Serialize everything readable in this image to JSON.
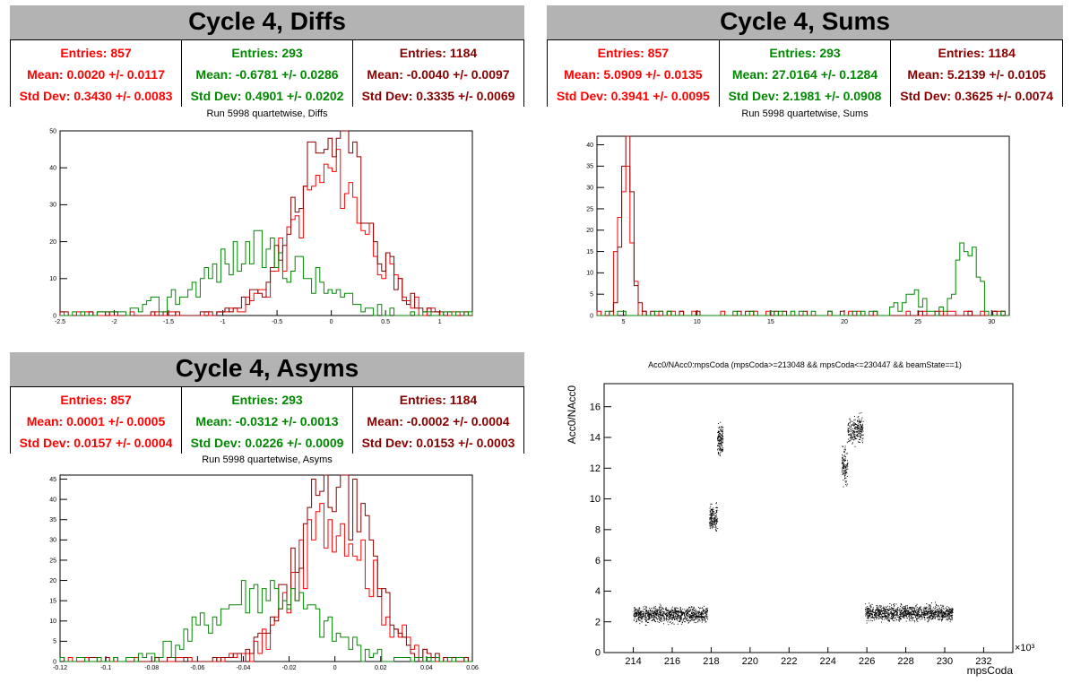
{
  "colors": {
    "entries1": "#ff0000",
    "entries2": "#008800",
    "entries3": "#880000",
    "title_bg": "#b3b3b3"
  },
  "panels": {
    "diffs": {
      "title": "Cycle 4, Diffs",
      "stats": [
        {
          "entries": "Entries: 857",
          "mean": "Mean: 0.0020 +/- 0.0117",
          "std": "Std Dev: 0.3430 +/- 0.0083"
        },
        {
          "entries": "Entries: 293",
          "mean": "Mean: -0.6781 +/- 0.0286",
          "std": "Std Dev: 0.4901 +/- 0.0202"
        },
        {
          "entries": "Entries: 1184",
          "mean": "Mean: -0.0040 +/- 0.0097",
          "std": "Std Dev: 0.3335 +/- 0.0069"
        }
      ],
      "subtitle": "Run 5998 quartetwise, Diffs"
    },
    "sums": {
      "title": "Cycle 4, Sums",
      "stats": [
        {
          "entries": "Entries: 857",
          "mean": "Mean: 5.0909 +/- 0.0135",
          "std": "Std Dev: 0.3941 +/- 0.0095"
        },
        {
          "entries": "Entries: 293",
          "mean": "Mean: 27.0164 +/- 0.1284",
          "std": "Std Dev: 2.1981 +/- 0.0908"
        },
        {
          "entries": "Entries: 1184",
          "mean": "Mean: 5.2139 +/- 0.0105",
          "std": "Std Dev: 0.3625 +/- 0.0074"
        }
      ],
      "subtitle": "Run 5998 quartetwise, Sums"
    },
    "asyms": {
      "title": "Cycle 4, Asyms",
      "stats": [
        {
          "entries": "Entries: 857",
          "mean": "Mean: 0.0001 +/- 0.0005",
          "std": "Std Dev: 0.0157 +/- 0.0004"
        },
        {
          "entries": "Entries: 293",
          "mean": "Mean: -0.0312 +/- 0.0013",
          "std": "Std Dev: 0.0226 +/- 0.0009"
        },
        {
          "entries": "Entries: 1184",
          "mean": "Mean: -0.0002 +/- 0.0004",
          "std": "Std Dev: 0.0153 +/- 0.0003"
        }
      ],
      "subtitle": "Run 5998 quartetwise, Asyms"
    },
    "scatter": {
      "title": "Acc0/NAcc0:mpsCoda (mpsCoda>=213048 && mpsCoda<=230447 && beamState==1)"
    }
  },
  "chart_data": [
    {
      "type": "histogram",
      "name": "diffs",
      "xlim": [
        -2.5,
        1.3
      ],
      "ylim": [
        0,
        50
      ],
      "xticks": [
        -2.5,
        -2,
        -1.5,
        -1,
        -0.5,
        0,
        0.5,
        1
      ],
      "yticks": [
        0,
        10,
        20,
        30,
        40,
        50
      ],
      "series": [
        {
          "color": "#ff0000",
          "mean": 0.002,
          "std": 0.343,
          "peak": 38,
          "seed": 11
        },
        {
          "color": "#880000",
          "mean": -0.004,
          "std": 0.3335,
          "peak": 48,
          "seed": 23
        },
        {
          "color": "#008800",
          "mean": -0.678,
          "std": 0.49,
          "peak": 17,
          "seed": 37
        }
      ]
    },
    {
      "type": "histogram",
      "name": "sums",
      "xlim": [
        3.2,
        31.2
      ],
      "ylim": [
        0,
        42
      ],
      "xticks": [
        5,
        10,
        15,
        20,
        25,
        30
      ],
      "yticks": [
        0,
        5,
        10,
        15,
        20,
        25,
        30,
        35,
        40
      ],
      "series": [
        {
          "color": "#ff0000",
          "mean": 5.091,
          "std": 0.394,
          "peak": 36,
          "seed": 5
        },
        {
          "color": "#880000",
          "mean": 5.214,
          "std": 0.3625,
          "peak": 41,
          "seed": 9
        },
        {
          "color": "#008800",
          "mean": 27.0,
          "std": 2.2,
          "peak": 20,
          "seed": 13,
          "bimodal": [
            [
              24.5,
              0.8,
              6
            ],
            [
              28.3,
              0.7,
              20
            ]
          ]
        }
      ]
    },
    {
      "type": "histogram",
      "name": "asyms",
      "xlim": [
        -0.12,
        0.06
      ],
      "ylim": [
        0,
        46
      ],
      "xticks": [
        -0.12,
        -0.1,
        -0.08,
        -0.06,
        -0.04,
        -0.02,
        0,
        0.02,
        0.04,
        0.06
      ],
      "yticks": [
        0,
        5,
        10,
        15,
        20,
        25,
        30,
        35,
        40,
        45
      ],
      "series": [
        {
          "color": "#ff0000",
          "mean": 0.0001,
          "std": 0.0157,
          "peak": 36,
          "seed": 17
        },
        {
          "color": "#880000",
          "mean": -0.0002,
          "std": 0.0153,
          "peak": 44,
          "seed": 29
        },
        {
          "color": "#008800",
          "mean": -0.0312,
          "std": 0.0226,
          "peak": 17,
          "seed": 41
        }
      ]
    },
    {
      "type": "scatter",
      "name": "acc0-vs-mpscoda",
      "xlabel": "mpsCoda",
      "ylabel": "Acc0/NAcc0",
      "xexp": "×10³",
      "xlim": [
        212.5,
        233.5
      ],
      "ylim": [
        0,
        17.5
      ],
      "xticks": [
        214,
        216,
        218,
        220,
        222,
        224,
        226,
        228,
        230,
        232
      ],
      "yticks": [
        0,
        2,
        4,
        6,
        8,
        10,
        12,
        14,
        16
      ],
      "clusters": [
        {
          "x": [
            214.0,
            217.8
          ],
          "y": [
            2.5,
            0.35
          ],
          "n": 900
        },
        {
          "x": [
            217.9,
            218.3
          ],
          "y": [
            8.8,
            0.6
          ],
          "n": 160
        },
        {
          "x": [
            218.3,
            218.6
          ],
          "y": [
            13.9,
            0.7
          ],
          "n": 140
        },
        {
          "x": [
            224.7,
            225.0
          ],
          "y": [
            12.2,
            0.8
          ],
          "n": 110
        },
        {
          "x": [
            225.0,
            225.8
          ],
          "y": [
            14.5,
            0.6
          ],
          "n": 230
        },
        {
          "x": [
            225.9,
            230.4
          ],
          "y": [
            2.6,
            0.35
          ],
          "n": 1100
        }
      ]
    }
  ]
}
